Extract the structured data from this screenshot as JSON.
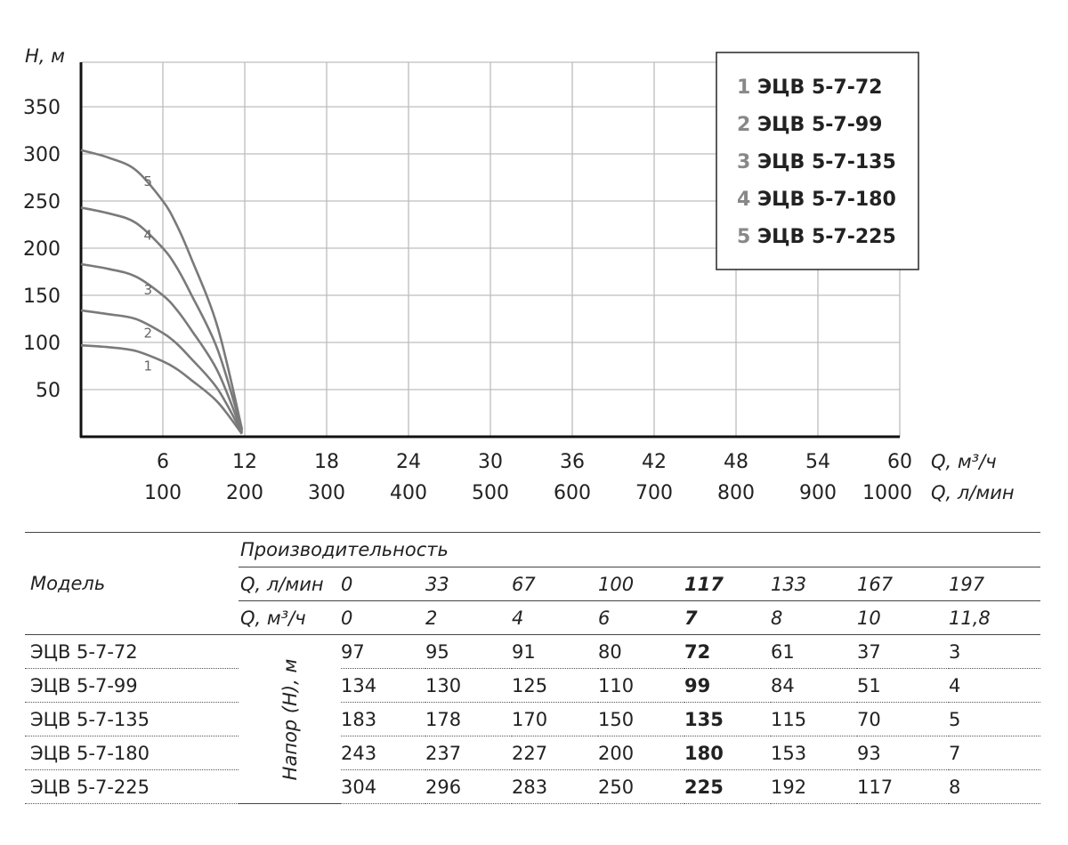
{
  "chart_data": {
    "type": "line",
    "ylabel": "H, м",
    "xlabel_primary": "Q, м³/ч",
    "xlabel_secondary": "Q, л/мин",
    "yticks": [
      50,
      100,
      150,
      200,
      250,
      300,
      350
    ],
    "ylim": [
      0,
      400
    ],
    "xlim": [
      0,
      60
    ],
    "xticks_m3h": [
      6,
      12,
      18,
      24,
      30,
      36,
      42,
      48,
      54,
      60
    ],
    "xticks_lmin": [
      100,
      200,
      300,
      400,
      500,
      600,
      700,
      800,
      900,
      1000
    ],
    "grid": true,
    "legend_position": "top-right",
    "x": [
      0,
      2,
      4,
      6,
      7,
      8,
      10,
      11.8
    ],
    "series": [
      {
        "name": "ЭЦВ 5-7-72",
        "label": "1",
        "values": [
          97,
          95,
          91,
          80,
          72,
          61,
          37,
          3
        ]
      },
      {
        "name": "ЭЦВ 5-7-99",
        "label": "2",
        "values": [
          134,
          130,
          125,
          110,
          99,
          84,
          51,
          4
        ]
      },
      {
        "name": "ЭЦВ 5-7-135",
        "label": "3",
        "values": [
          183,
          178,
          170,
          150,
          135,
          115,
          70,
          5
        ]
      },
      {
        "name": "ЭЦВ 5-7-180",
        "label": "4",
        "values": [
          243,
          237,
          227,
          200,
          180,
          153,
          93,
          7
        ]
      },
      {
        "name": "ЭЦВ 5-7-225",
        "label": "5",
        "values": [
          304,
          296,
          283,
          250,
          225,
          192,
          117,
          8
        ]
      }
    ]
  },
  "table": {
    "model_header": "Модель",
    "perf_header": "Производительность",
    "q_lmin_label": "Q, л/мин",
    "q_m3h_label": "Q, м³/ч",
    "q_lmin": [
      "0",
      "33",
      "67",
      "100",
      "117",
      "133",
      "167",
      "197"
    ],
    "q_m3h": [
      "0",
      "2",
      "4",
      "6",
      "7",
      "8",
      "10",
      "11,8"
    ],
    "head_label": "Напор (H), м",
    "rows": [
      {
        "model": "ЭЦВ 5-7-72",
        "values": [
          "97",
          "95",
          "91",
          "80",
          "72",
          "61",
          "37",
          "3"
        ]
      },
      {
        "model": "ЭЦВ 5-7-99",
        "values": [
          "134",
          "130",
          "125",
          "110",
          "99",
          "84",
          "51",
          "4"
        ]
      },
      {
        "model": "ЭЦВ 5-7-135",
        "values": [
          "183",
          "178",
          "170",
          "150",
          "135",
          "115",
          "70",
          "5"
        ]
      },
      {
        "model": "ЭЦВ 5-7-180",
        "values": [
          "243",
          "237",
          "227",
          "200",
          "180",
          "153",
          "93",
          "7"
        ]
      },
      {
        "model": "ЭЦВ 5-7-225",
        "values": [
          "304",
          "296",
          "283",
          "250",
          "225",
          "192",
          "117",
          "8"
        ]
      }
    ]
  }
}
